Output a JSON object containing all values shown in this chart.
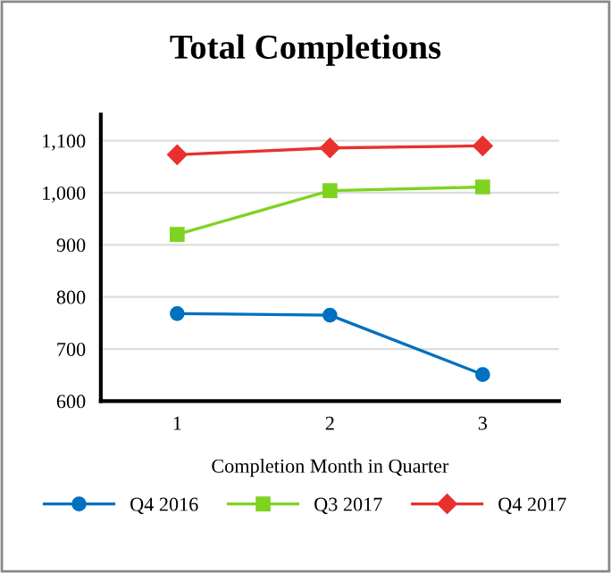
{
  "chart_data": {
    "type": "line",
    "title": "Total Completions",
    "xlabel": "Completion Month in Quarter",
    "categories": [
      "1",
      "2",
      "3"
    ],
    "series": [
      {
        "name": "Q4 2016",
        "color": "#0070c0",
        "marker": "circle",
        "values": [
          768,
          765,
          651
        ]
      },
      {
        "name": "Q3 2017",
        "color": "#7ed321",
        "marker": "square",
        "values": [
          920,
          1004,
          1011
        ]
      },
      {
        "name": "Q4 2017",
        "color": "#e8312f",
        "marker": "diamond",
        "values": [
          1073,
          1086,
          1090
        ]
      }
    ],
    "ylim": [
      600,
      1150
    ],
    "yticks": [
      600,
      700,
      800,
      900,
      {
        "value": 1000,
        "label": "1,000"
      },
      {
        "value": 1100,
        "label": "1,100"
      }
    ],
    "grid": "y",
    "legend": "bottom"
  }
}
